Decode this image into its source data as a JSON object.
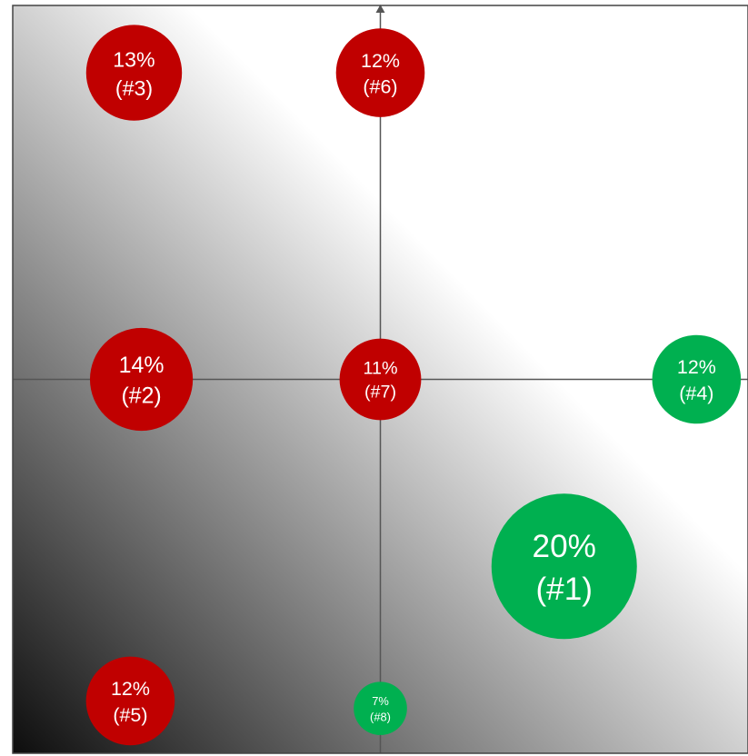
{
  "chart_data": {
    "type": "scatter",
    "title": "",
    "xlabel": "",
    "ylabel": "",
    "xlim": [
      0,
      2
    ],
    "ylim": [
      0,
      2
    ],
    "background": "diagonal-gradient-dark-bottom-left",
    "axes": "crosshair-at-center",
    "colors": {
      "red": "#c00000",
      "green": "#00b050",
      "axis": "#555555",
      "border": "#444444"
    },
    "points": [
      {
        "rank": 1,
        "label": "20%",
        "rank_label": "(#1)",
        "value": 20,
        "x": 1.5,
        "y": 0.5,
        "color": "green"
      },
      {
        "rank": 2,
        "label": "14%",
        "rank_label": "(#2)",
        "value": 14,
        "x": 0.35,
        "y": 1.0,
        "color": "red"
      },
      {
        "rank": 3,
        "label": "13%",
        "rank_label": "(#3)",
        "value": 13,
        "x": 0.33,
        "y": 1.82,
        "color": "red"
      },
      {
        "rank": 4,
        "label": "12%",
        "rank_label": "(#4)",
        "value": 12,
        "x": 1.86,
        "y": 1.0,
        "color": "green"
      },
      {
        "rank": 5,
        "label": "12%",
        "rank_label": "(#5)",
        "value": 12,
        "x": 0.32,
        "y": 0.14,
        "color": "red"
      },
      {
        "rank": 6,
        "label": "12%",
        "rank_label": "(#6)",
        "value": 12,
        "x": 1.0,
        "y": 1.82,
        "color": "red"
      },
      {
        "rank": 7,
        "label": "11%",
        "rank_label": "(#7)",
        "value": 11,
        "x": 1.0,
        "y": 1.0,
        "color": "red"
      },
      {
        "rank": 8,
        "label": "7%",
        "rank_label": "(#8)",
        "value": 7,
        "x": 1.0,
        "y": 0.12,
        "color": "green"
      }
    ]
  }
}
